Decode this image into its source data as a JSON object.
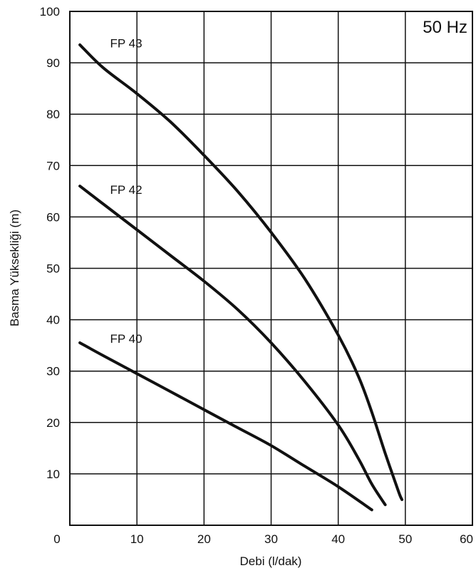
{
  "chart_data": {
    "type": "line",
    "annotation": "50 Hz",
    "xlabel": "Debi (l/dak)",
    "ylabel": "Basma Yüksekliği (m)",
    "xlim": [
      0,
      60
    ],
    "ylim": [
      0,
      100
    ],
    "xticks": [
      0,
      10,
      20,
      30,
      40,
      50,
      60
    ],
    "yticks": [
      10,
      20,
      30,
      40,
      50,
      60,
      70,
      80,
      90,
      100
    ],
    "grid": true,
    "line_color": "#111111",
    "series": [
      {
        "name": "FP 43",
        "label_at": [
          6,
          93
        ],
        "points": [
          [
            1.5,
            93.5
          ],
          [
            5,
            89
          ],
          [
            10,
            84
          ],
          [
            15,
            78.5
          ],
          [
            20,
            72
          ],
          [
            25,
            65
          ],
          [
            30,
            57
          ],
          [
            35,
            48
          ],
          [
            40,
            37
          ],
          [
            43,
            29
          ],
          [
            45,
            22
          ],
          [
            47,
            14
          ],
          [
            49,
            6.5
          ],
          [
            49.5,
            5
          ]
        ]
      },
      {
        "name": "FP 42",
        "label_at": [
          6,
          64.5
        ],
        "points": [
          [
            1.5,
            66
          ],
          [
            5,
            62.5
          ],
          [
            10,
            57.5
          ],
          [
            15,
            52.5
          ],
          [
            20,
            47.5
          ],
          [
            25,
            42
          ],
          [
            30,
            35.5
          ],
          [
            35,
            28
          ],
          [
            40,
            19.5
          ],
          [
            43,
            13
          ],
          [
            45,
            8
          ],
          [
            47,
            4
          ]
        ]
      },
      {
        "name": "FP 40",
        "label_at": [
          6,
          35.5
        ],
        "points": [
          [
            1.5,
            35.5
          ],
          [
            5,
            33
          ],
          [
            10,
            29.5
          ],
          [
            15,
            26
          ],
          [
            20,
            22.5
          ],
          [
            25,
            19
          ],
          [
            30,
            15.5
          ],
          [
            35,
            11.5
          ],
          [
            40,
            7.5
          ],
          [
            45,
            3
          ]
        ]
      }
    ]
  }
}
